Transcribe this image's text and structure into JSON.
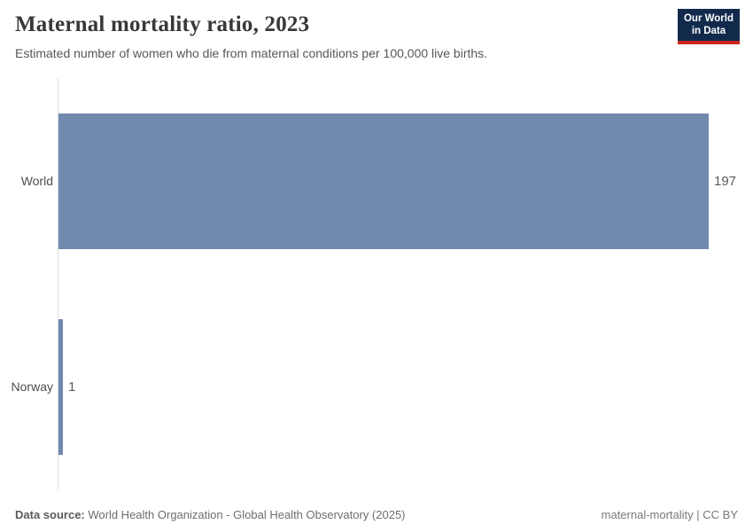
{
  "header": {
    "title": "Maternal mortality ratio, 2023",
    "subtitle": "Estimated number of women who die from maternal conditions per 100,000 live births.",
    "logo": {
      "line1": "Our World",
      "line2": "in Data"
    }
  },
  "chart_data": {
    "type": "bar",
    "orientation": "horizontal",
    "title": "Maternal mortality ratio, 2023",
    "categories": [
      "World",
      "Norway"
    ],
    "values": [
      197,
      1
    ],
    "value_labels": [
      "197",
      "1"
    ],
    "xlabel": "",
    "ylabel": "",
    "xlim": [
      0,
      197
    ],
    "grid": false,
    "legend": false
  },
  "footer": {
    "datasource_label": "Data source:",
    "datasource_value": " World Health Organization - Global Health Observatory (2025)",
    "note_right": "maternal-mortality | CC BY"
  },
  "colors": {
    "bar": "#7289ae",
    "axis": "#dedede",
    "logo_navy": "#122a4c",
    "logo_red": "#c9271e",
    "title_text": "#383838"
  }
}
